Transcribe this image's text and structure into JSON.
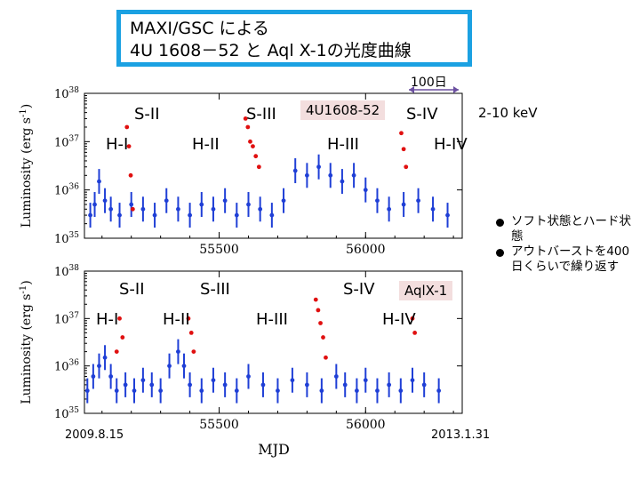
{
  "title": {
    "line1": "MAXI/GSC による",
    "line2": "4U 1608－52 と Aql X-1の光度曲線"
  },
  "scale_label": "100日",
  "energy_label": "2-10 keV",
  "legend": {
    "items": [
      "ソフト状態とハード状態",
      "アウトバーストを400日くらいで繰り返す"
    ]
  },
  "dates": {
    "start": "2009.8.15",
    "end": "2013.1.31"
  },
  "colors": {
    "hard": "#1f3fd6",
    "soft": "#e01010",
    "accent": "#1ba1e2",
    "tag_bg": "#f3dede"
  },
  "chart_data": [
    {
      "type": "scatter",
      "title": "4U1608-52",
      "xlabel": "MJD",
      "ylabel": "Luminosity (erg s-1)",
      "yscale": "log",
      "xlim": [
        55040,
        56330
      ],
      "ylim": [
        1e+35,
        1e+38
      ],
      "yticks": [
        "10^38",
        "10^37",
        "10^36",
        "10^35"
      ],
      "xticks": [
        55500,
        56000
      ],
      "state_labels": [
        "S-II",
        "S-III",
        "S-IV",
        "H-I",
        "H-II",
        "H-III",
        "H-IV"
      ],
      "series": [
        {
          "name": "hard",
          "points": [
            [
              55060,
              3e+35
            ],
            [
              55075,
              5e+35
            ],
            [
              55090,
              1.5e+36
            ],
            [
              55110,
              6e+35
            ],
            [
              55130,
              4e+35
            ],
            [
              55160,
              3e+35
            ],
            [
              55200,
              5e+35
            ],
            [
              55240,
              4e+35
            ],
            [
              55280,
              3e+35
            ],
            [
              55320,
              6e+35
            ],
            [
              55360,
              4e+35
            ],
            [
              55400,
              3e+35
            ],
            [
              55440,
              5e+35
            ],
            [
              55480,
              4e+35
            ],
            [
              55520,
              6e+35
            ],
            [
              55560,
              3e+35
            ],
            [
              55600,
              5e+35
            ],
            [
              55640,
              4e+35
            ],
            [
              55680,
              3e+35
            ],
            [
              55720,
              6e+35
            ],
            [
              55760,
              2.5e+36
            ],
            [
              55800,
              2e+36
            ],
            [
              55840,
              3e+36
            ],
            [
              55880,
              2e+36
            ],
            [
              55920,
              1.5e+36
            ],
            [
              55960,
              2e+36
            ],
            [
              56000,
              1e+36
            ],
            [
              56040,
              6e+35
            ],
            [
              56080,
              4e+35
            ],
            [
              56130,
              5e+35
            ],
            [
              56180,
              6e+35
            ],
            [
              56230,
              4e+35
            ],
            [
              56280,
              3e+35
            ]
          ]
        },
        {
          "name": "soft",
          "points": [
            [
              55185,
              2e+37
            ],
            [
              55192,
              8e+36
            ],
            [
              55198,
              2e+36
            ],
            [
              55205,
              4e+35
            ],
            [
              55590,
              3e+37
            ],
            [
              55598,
              2e+37
            ],
            [
              55606,
              1e+37
            ],
            [
              55615,
              8e+36
            ],
            [
              55625,
              5e+36
            ],
            [
              55636,
              3e+36
            ],
            [
              56122,
              1.5e+37
            ],
            [
              56130,
              7e+36
            ],
            [
              56138,
              3e+36
            ]
          ]
        }
      ]
    },
    {
      "type": "scatter",
      "title": "AqlX-1",
      "xlabel": "MJD",
      "ylabel": "Luminosity (erg s-1)",
      "yscale": "log",
      "xlim": [
        55040,
        56330
      ],
      "ylim": [
        1e+35,
        1e+38
      ],
      "yticks": [
        "10^38",
        "10^37",
        "10^36",
        "10^35"
      ],
      "xticks": [
        55500,
        56000
      ],
      "state_labels": [
        "S-II",
        "S-III",
        "S-IV",
        "H-I",
        "H-II",
        "H-III",
        "H-IV"
      ],
      "series": [
        {
          "name": "hard",
          "points": [
            [
              55050,
              3e+35
            ],
            [
              55070,
              6e+35
            ],
            [
              55090,
              1e+36
            ],
            [
              55110,
              1.5e+36
            ],
            [
              55130,
              6e+35
            ],
            [
              55150,
              3e+35
            ],
            [
              55180,
              4e+35
            ],
            [
              55210,
              3e+35
            ],
            [
              55240,
              5e+35
            ],
            [
              55270,
              4e+35
            ],
            [
              55300,
              3e+35
            ],
            [
              55330,
              1e+36
            ],
            [
              55360,
              2e+36
            ],
            [
              55380,
              1e+36
            ],
            [
              55400,
              4e+35
            ],
            [
              55440,
              3e+35
            ],
            [
              55480,
              5e+35
            ],
            [
              55520,
              4e+35
            ],
            [
              55560,
              3e+35
            ],
            [
              55600,
              6e+35
            ],
            [
              55650,
              4e+35
            ],
            [
              55700,
              3e+35
            ],
            [
              55750,
              5e+35
            ],
            [
              55800,
              4e+35
            ],
            [
              55850,
              3e+35
            ],
            [
              55900,
              6e+35
            ],
            [
              55930,
              4e+35
            ],
            [
              55970,
              3e+35
            ],
            [
              56000,
              5e+35
            ],
            [
              56040,
              3e+35
            ],
            [
              56080,
              4e+35
            ],
            [
              56120,
              3e+35
            ],
            [
              56160,
              5e+35
            ],
            [
              56200,
              4e+35
            ],
            [
              56250,
              3e+35
            ]
          ]
        },
        {
          "name": "soft",
          "points": [
            [
              55150,
              2e+36
            ],
            [
              55160,
              1e+37
            ],
            [
              55170,
              4e+36
            ],
            [
              55395,
              1e+37
            ],
            [
              55405,
              5e+36
            ],
            [
              55413,
              2e+36
            ],
            [
              55830,
              2.5e+37
            ],
            [
              55838,
              1.5e+37
            ],
            [
              55846,
              8e+36
            ],
            [
              55855,
              4e+36
            ],
            [
              55864,
              1.5e+36
            ],
            [
              56160,
              1e+37
            ],
            [
              56168,
              5e+36
            ]
          ]
        }
      ]
    }
  ]
}
